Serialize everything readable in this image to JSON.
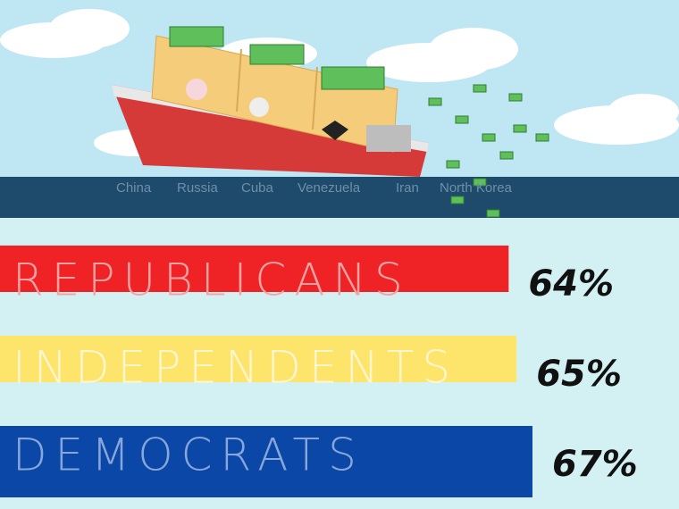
{
  "chart_data": {
    "type": "bar",
    "orientation": "horizontal",
    "annotations": [
      "China",
      "Russia",
      "Cuba",
      "Venezuela",
      "Iran",
      "North Korea"
    ],
    "categories": [
      "REPUBLICANS",
      "INDEPENDENTS",
      "DEMOCRATS"
    ],
    "values": [
      64,
      65,
      67
    ],
    "value_labels": [
      "64%",
      "65%",
      "67%"
    ],
    "colors": [
      "#ef2326",
      "#fde46b",
      "#0b47a6"
    ]
  }
}
